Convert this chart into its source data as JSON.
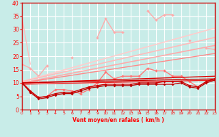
{
  "xlabel": "Vent moyen/en rafales ( km/h )",
  "xlim": [
    0,
    23
  ],
  "ylim": [
    0,
    40
  ],
  "yticks": [
    0,
    5,
    10,
    15,
    20,
    25,
    30,
    35,
    40
  ],
  "xticks": [
    0,
    1,
    2,
    3,
    4,
    5,
    6,
    7,
    8,
    9,
    10,
    11,
    12,
    13,
    14,
    15,
    16,
    17,
    18,
    19,
    20,
    21,
    22,
    23
  ],
  "bg_color": "#c8ece8",
  "grid_color": "#ffffff",
  "lines": [
    {
      "x": [
        0,
        1,
        2,
        3,
        4,
        5,
        6,
        7,
        8,
        9,
        10,
        11,
        12,
        13,
        14,
        15,
        16,
        17,
        18,
        19,
        20,
        21,
        22,
        23
      ],
      "y": [
        17.0,
        15.5,
        12.5,
        16.5,
        null,
        null,
        19.5,
        null,
        null,
        27.0,
        34.0,
        29.0,
        29.0,
        null,
        null,
        37.0,
        33.5,
        35.5,
        35.5,
        null,
        26.0,
        null,
        23.0,
        22.5
      ],
      "color": "#ffaaaa",
      "lw": 1.0,
      "marker": "D",
      "ms": 2.0
    },
    {
      "x": [
        0,
        1,
        2,
        3,
        4,
        5,
        6,
        7,
        8,
        9,
        10,
        11,
        12,
        13,
        14,
        15,
        16,
        17,
        18,
        19,
        20,
        21,
        22,
        23
      ],
      "y": [
        10.5,
        7.0,
        4.5,
        5.0,
        7.5,
        7.5,
        7.0,
        6.0,
        7.5,
        10.0,
        14.0,
        11.5,
        12.5,
        12.5,
        12.5,
        15.5,
        14.5,
        14.5,
        12.5,
        12.5,
        10.5,
        8.5,
        10.5,
        11.5
      ],
      "color": "#ff7777",
      "lw": 1.0,
      "marker": "D",
      "ms": 2.0
    },
    {
      "x": [
        0,
        23
      ],
      "y": [
        10.5,
        30.5
      ],
      "color": "#ffcccc",
      "lw": 1.2,
      "marker": null,
      "ms": 0
    },
    {
      "x": [
        0,
        23
      ],
      "y": [
        10.5,
        27.0
      ],
      "color": "#ffbbbb",
      "lw": 1.2,
      "marker": null,
      "ms": 0
    },
    {
      "x": [
        0,
        23
      ],
      "y": [
        10.0,
        24.0
      ],
      "color": "#ffaaaa",
      "lw": 1.2,
      "marker": null,
      "ms": 0
    },
    {
      "x": [
        0,
        23
      ],
      "y": [
        10.0,
        21.0
      ],
      "color": "#ff8888",
      "lw": 1.0,
      "marker": null,
      "ms": 0
    },
    {
      "x": [
        0,
        23
      ],
      "y": [
        10.0,
        12.5
      ],
      "color": "#dd0000",
      "lw": 1.0,
      "marker": null,
      "ms": 0
    },
    {
      "x": [
        0,
        23
      ],
      "y": [
        10.0,
        11.5
      ],
      "color": "#cc0000",
      "lw": 1.0,
      "marker": null,
      "ms": 0
    },
    {
      "x": [
        0,
        23
      ],
      "y": [
        9.5,
        11.0
      ],
      "color": "#ee2222",
      "lw": 1.0,
      "marker": null,
      "ms": 0
    },
    {
      "x": [
        0,
        1,
        2,
        3,
        4,
        5,
        6,
        7,
        8,
        9,
        10,
        11,
        12,
        13,
        14,
        15,
        16,
        17,
        18,
        19,
        20,
        21,
        22,
        23
      ],
      "y": [
        10.0,
        7.0,
        4.5,
        5.0,
        6.0,
        6.5,
        6.5,
        7.5,
        8.5,
        9.0,
        9.5,
        9.5,
        9.5,
        9.5,
        10.0,
        10.0,
        10.0,
        10.5,
        10.5,
        10.5,
        9.0,
        8.5,
        10.5,
        11.5
      ],
      "color": "#cc0000",
      "lw": 1.0,
      "marker": "D",
      "ms": 1.8
    },
    {
      "x": [
        0,
        1,
        2,
        3,
        4,
        5,
        6,
        7,
        8,
        9,
        10,
        11,
        12,
        13,
        14,
        15,
        16,
        17,
        18,
        19,
        20,
        21,
        22,
        23
      ],
      "y": [
        10.0,
        6.5,
        4.0,
        4.5,
        5.5,
        6.0,
        6.0,
        7.0,
        8.0,
        8.5,
        9.0,
        9.0,
        9.0,
        9.0,
        9.5,
        9.5,
        9.5,
        9.5,
        9.5,
        10.0,
        8.5,
        8.0,
        10.0,
        11.0
      ],
      "color": "#bb0000",
      "lw": 1.0,
      "marker": "D",
      "ms": 1.8
    },
    {
      "x": [
        0,
        1
      ],
      "y": [
        34.5,
        17.0
      ],
      "color": "#ffbbbb",
      "lw": 1.0,
      "marker": null,
      "ms": 0
    }
  ]
}
